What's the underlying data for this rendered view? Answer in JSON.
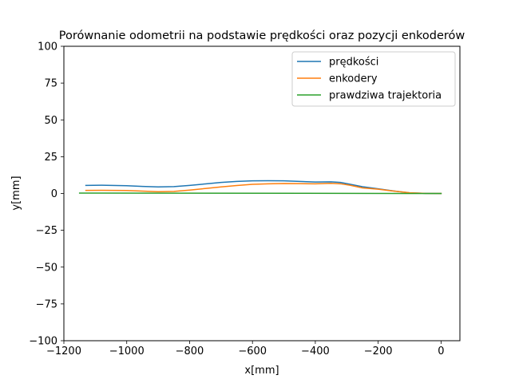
{
  "chart_data": {
    "type": "line",
    "title": "Porównanie odometrii na podstawie prędkości oraz pozycji enkoderów",
    "xlabel": "x[mm]",
    "ylabel": "y[mm]",
    "xlim": [
      -1200,
      60
    ],
    "ylim": [
      -100,
      100
    ],
    "xticks": [
      -1200,
      -1000,
      -800,
      -600,
      -400,
      -200,
      0
    ],
    "xtick_labels": [
      "−1200",
      "−1000",
      "−800",
      "−600",
      "−400",
      "−200",
      "0"
    ],
    "yticks": [
      -100,
      -75,
      -50,
      -25,
      0,
      25,
      50,
      75,
      100
    ],
    "ytick_labels": [
      "−100",
      "−75",
      "−50",
      "−25",
      "0",
      "25",
      "50",
      "75",
      "100"
    ],
    "grid": false,
    "legend_position": "upper-right",
    "series": [
      {
        "name": "prędkości",
        "color": "#1f77b4",
        "x": [
          -1130,
          -1080,
          -1000,
          -950,
          -900,
          -850,
          -800,
          -750,
          -700,
          -650,
          -600,
          -550,
          -500,
          -450,
          -400,
          -350,
          -320,
          -290,
          -250,
          -200,
          -150,
          -100,
          -50,
          0
        ],
        "y": [
          5.5,
          5.6,
          5.3,
          4.8,
          4.5,
          4.7,
          5.5,
          6.5,
          7.5,
          8.2,
          8.6,
          8.7,
          8.6,
          8.2,
          7.8,
          7.9,
          7.5,
          6.3,
          4.6,
          3.2,
          1.7,
          0.4,
          0.1,
          0
        ]
      },
      {
        "name": "enkodery",
        "color": "#ff7f0e",
        "x": [
          -1130,
          -1080,
          -1000,
          -950,
          -900,
          -850,
          -800,
          -750,
          -700,
          -650,
          -600,
          -550,
          -500,
          -450,
          -400,
          -350,
          -320,
          -290,
          -250,
          -200,
          -150,
          -100,
          -50,
          0
        ],
        "y": [
          2.1,
          2.2,
          2.0,
          1.6,
          1.2,
          1.4,
          2.3,
          3.4,
          4.5,
          5.4,
          6.2,
          6.6,
          6.8,
          6.7,
          6.6,
          6.9,
          6.6,
          5.6,
          3.8,
          2.9,
          1.6,
          0.5,
          0.1,
          0
        ]
      },
      {
        "name": "prawdziwa trajektoria",
        "color": "#2ca02c",
        "x": [
          -1150,
          0
        ],
        "y": [
          0.3,
          0
        ]
      }
    ]
  }
}
